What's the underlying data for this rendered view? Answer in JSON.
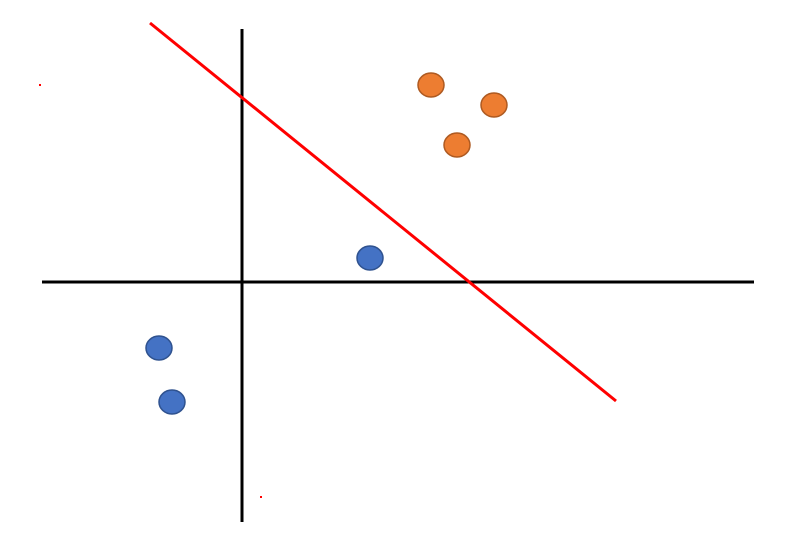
{
  "diagram": {
    "description_free": true,
    "colors": {
      "axis": "#000000",
      "boundary": "#ff0000",
      "class_a_fill": "#ed7d31",
      "class_a_stroke": "#ae5a21",
      "class_b_fill": "#4472c4",
      "class_b_stroke": "#2f528f",
      "stray_mark": "#ff0000"
    },
    "class_a_count": 3,
    "class_b_count": 3
  }
}
